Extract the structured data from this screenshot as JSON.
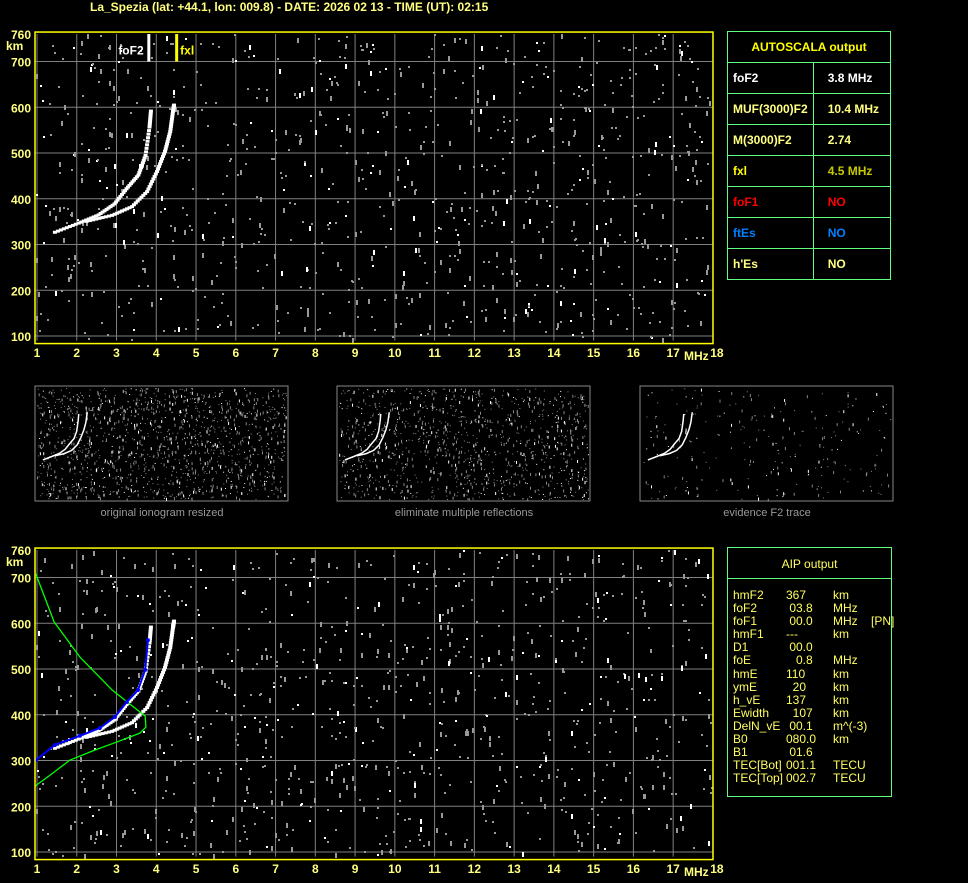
{
  "header": {
    "title": "La_Spezia (lat: +44.1, lon: 009.8) - DATE: 2026 02 13 - TIME (UT): 02:15"
  },
  "colors": {
    "frame": "#ffff00",
    "grid": "#808080",
    "trace": "#ffffff",
    "profile": "#00ff00",
    "aip_trace": "#0000ff",
    "table_border": "#60ff80"
  },
  "chart_data": {
    "type": "scatter",
    "xlabel": "MHz",
    "ylabel": "km",
    "xlim": [
      1,
      18
    ],
    "ylim": [
      100,
      760
    ],
    "x_ticks": [
      "1",
      "2",
      "3",
      "4",
      "5",
      "6",
      "7",
      "8",
      "9",
      "10",
      "11",
      "12",
      "13",
      "14",
      "15",
      "16",
      "17",
      "18"
    ],
    "y_ticks": [
      "760",
      "700",
      "600",
      "500",
      "400",
      "300",
      "200",
      "100"
    ],
    "grid": true,
    "markers": {
      "foF2": {
        "label": "foF2",
        "freq": 3.8
      },
      "fxl": {
        "label": "fxl",
        "freq": 4.5
      }
    },
    "o_trace": [
      [
        1.4,
        330
      ],
      [
        2.0,
        350
      ],
      [
        2.5,
        368
      ],
      [
        2.9,
        392
      ],
      [
        3.2,
        425
      ],
      [
        3.5,
        455
      ],
      [
        3.68,
        498
      ],
      [
        3.78,
        560
      ],
      [
        3.82,
        600
      ]
    ],
    "x_trace": [
      [
        2.2,
        354
      ],
      [
        2.84,
        367
      ],
      [
        3.34,
        386
      ],
      [
        3.72,
        419
      ],
      [
        3.97,
        463
      ],
      [
        4.17,
        507
      ],
      [
        4.3,
        550
      ],
      [
        4.37,
        594
      ],
      [
        4.4,
        610
      ]
    ],
    "aip_profile": [
      [
        0.97,
        708
      ],
      [
        1.43,
        603
      ],
      [
        2.08,
        526
      ],
      [
        2.89,
        454
      ],
      [
        3.72,
        397
      ],
      [
        3.74,
        373
      ],
      [
        3.59,
        360
      ],
      [
        3.09,
        343
      ],
      [
        2.46,
        323
      ],
      [
        1.83,
        301
      ],
      [
        1.33,
        268
      ],
      [
        0.95,
        244
      ]
    ],
    "aip_trace": [
      [
        0.97,
        301
      ],
      [
        1.45,
        334
      ],
      [
        2.08,
        354
      ],
      [
        2.58,
        371
      ],
      [
        2.96,
        395
      ],
      [
        3.26,
        428
      ],
      [
        3.54,
        454
      ],
      [
        3.72,
        498
      ],
      [
        3.79,
        563
      ]
    ]
  },
  "thumbnails": [
    {
      "caption": "original ionogram resized"
    },
    {
      "caption": "eliminate multiple reflections"
    },
    {
      "caption": "evidence F2 trace"
    }
  ],
  "autoscala": {
    "title": "AUTOSCALA output",
    "rows": [
      {
        "label": "foF2",
        "value": "3.8 MHz",
        "color": "#ffffff"
      },
      {
        "label": "MUF(3000)F2",
        "value": "10.4 MHz",
        "color": "#ffff80"
      },
      {
        "label": "M(3000)F2",
        "value": "2.74",
        "color": "#ffff80"
      },
      {
        "label": "fxl",
        "value": "4.5 MHz",
        "color": "#ffff00",
        "vcolor": "#c8c800"
      },
      {
        "label": "foF1",
        "value": "NO",
        "color": "#ff0000"
      },
      {
        "label": "ftEs",
        "value": "NO",
        "color": "#0080ff"
      },
      {
        "label": "h'Es",
        "value": "NO",
        "color": "#ffff80"
      }
    ]
  },
  "aip": {
    "title": "AIP output",
    "rows": [
      [
        "hmF2",
        "367",
        "km"
      ],
      [
        "foF2",
        " 03.8",
        "MHz"
      ],
      [
        "foF1",
        " 00.0",
        "MHz    [PN]"
      ],
      [
        "hmF1",
        "---",
        "km"
      ],
      [
        "D1",
        " 00.0",
        ""
      ],
      [
        "foE",
        "   0.8",
        "MHz"
      ],
      [
        "hmE",
        "110",
        "km"
      ],
      [
        "ymE",
        "  20",
        "km"
      ],
      [
        "h_vE",
        "137",
        "km"
      ],
      [
        "Ewidth",
        "  107",
        "km"
      ],
      [
        "DelN_vE",
        " 00.1",
        "m^(-3)"
      ],
      [
        "B0",
        "080.0",
        "km"
      ],
      [
        "B1",
        " 01.6",
        ""
      ],
      [
        "TEC[Bot]",
        "001.1",
        "TECU"
      ],
      [
        "TEC[Top]",
        "002.7",
        "TECU"
      ]
    ]
  }
}
